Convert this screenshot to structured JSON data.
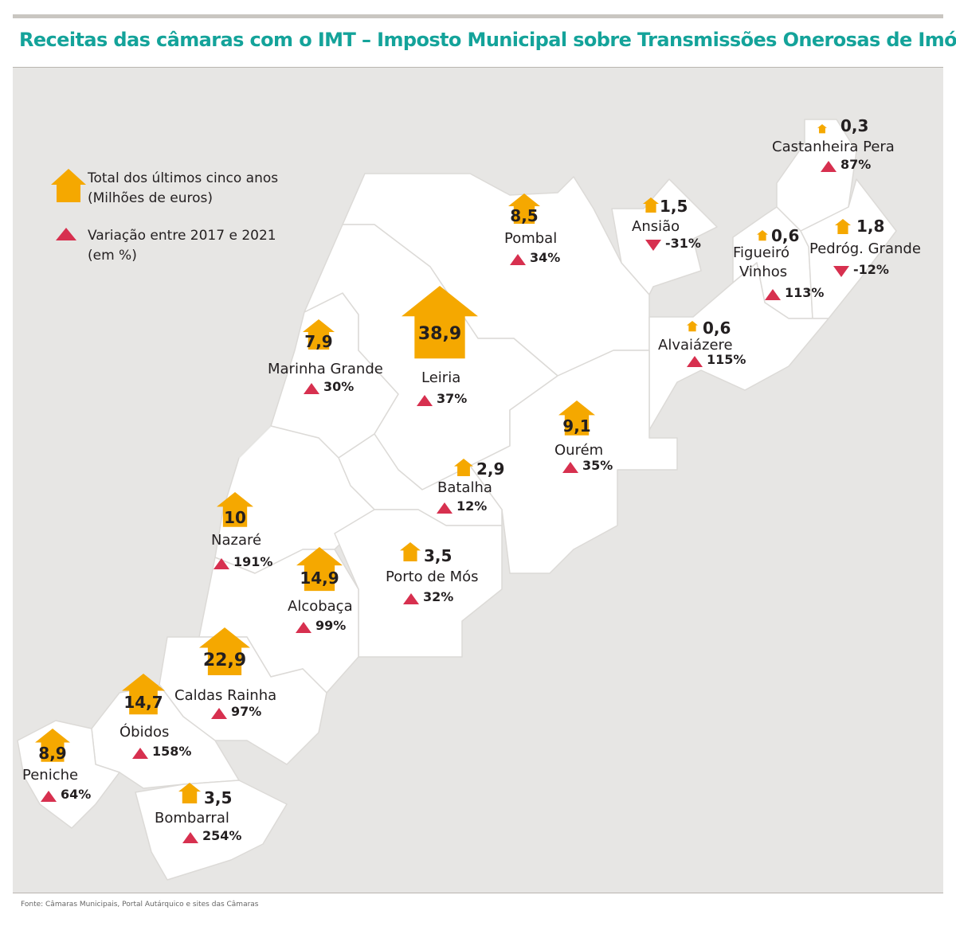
{
  "title": "Receitas das câmaras com o IMT – Imposto Municipal sobre Transmissões Onerosas de Imóveis",
  "legend": {
    "total_line1": "Total dos últimos cinco anos",
    "total_line2": "(Milhões de euros)",
    "var_line1": "Variação entre 2017 e 2021",
    "var_line2": "(em %)"
  },
  "source": "Fonte: Câmaras Municipais, Portal Autárquico e sites das Câmaras",
  "colors": {
    "house": "#f5a800",
    "up": "#d7304f",
    "down": "#d7304f",
    "title": "#14a39a",
    "map_bg": "#e7e6e4",
    "region": "#ffffff"
  },
  "chart_data": {
    "type": "map",
    "municipalities": [
      {
        "name": "Castanheira Pera",
        "total": "0,3",
        "change": "87%",
        "direction": "up"
      },
      {
        "name": "Pombal",
        "total": "8,5",
        "change": "34%",
        "direction": "up"
      },
      {
        "name": "Ansião",
        "total": "1,5",
        "change": "-31%",
        "direction": "down"
      },
      {
        "name": "Figueiró Vinhos",
        "name_line1": "Figueiró",
        "name_line2": "Vinhos",
        "total": "0,6",
        "change": "113%",
        "direction": "up"
      },
      {
        "name": "Pedróg. Grande",
        "total": "1,8",
        "change": "-12%",
        "direction": "down"
      },
      {
        "name": "Alvaiázere",
        "total": "0,6",
        "change": "115%",
        "direction": "up"
      },
      {
        "name": "Marinha Grande",
        "total": "7,9",
        "change": "30%",
        "direction": "up"
      },
      {
        "name": "Leiria",
        "total": "38,9",
        "change": "37%",
        "direction": "up"
      },
      {
        "name": "Ourém",
        "total": "9,1",
        "change": "35%",
        "direction": "up"
      },
      {
        "name": "Batalha",
        "total": "2,9",
        "change": "12%",
        "direction": "up"
      },
      {
        "name": "Nazaré",
        "total": "10",
        "change": "191%",
        "direction": "up"
      },
      {
        "name": "Porto de Mós",
        "total": "3,5",
        "change": "32%",
        "direction": "up"
      },
      {
        "name": "Alcobaça",
        "total": "14,9",
        "change": "99%",
        "direction": "up"
      },
      {
        "name": "Caldas Rainha",
        "total": "22,9",
        "change": "97%",
        "direction": "up"
      },
      {
        "name": "Óbidos",
        "total": "14,7",
        "change": "158%",
        "direction": "up"
      },
      {
        "name": "Peniche",
        "total": "8,9",
        "change": "64%",
        "direction": "up"
      },
      {
        "name": "Bombarral",
        "total": "3,5",
        "change": "254%",
        "direction": "up"
      }
    ]
  }
}
